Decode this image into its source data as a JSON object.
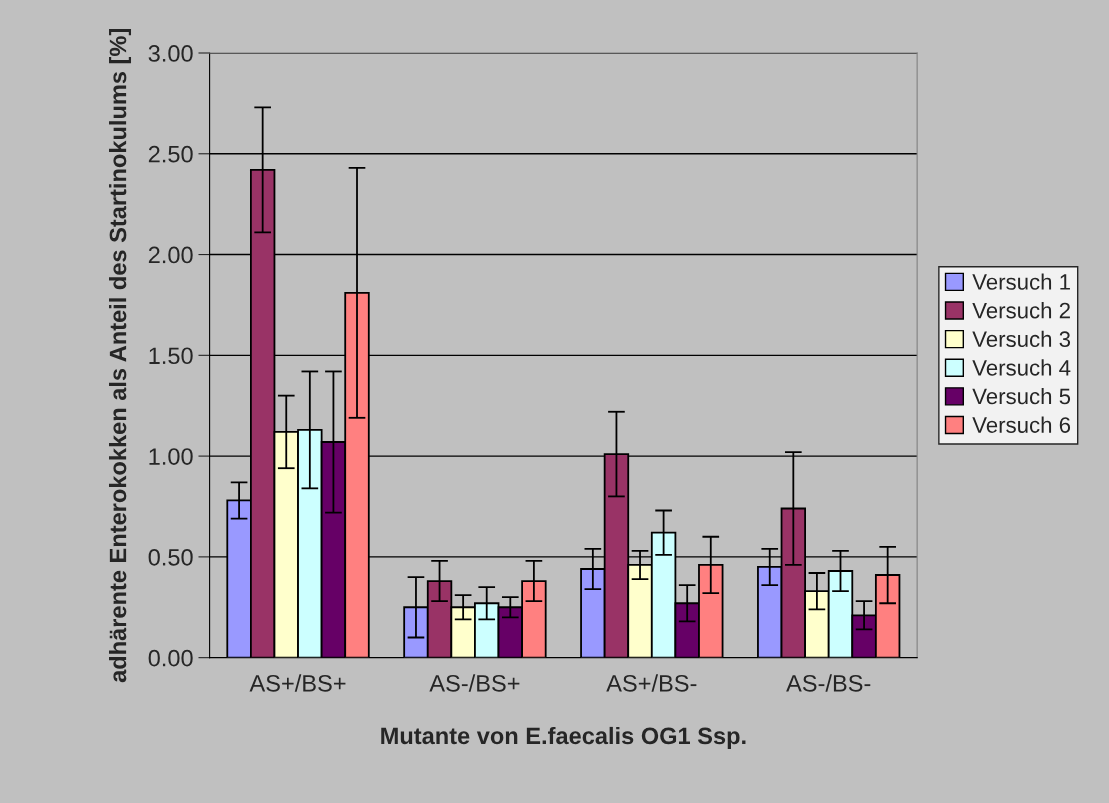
{
  "chart_data": {
    "type": "bar",
    "xlabel": "Mutante von E.faecalis OG1 Ssp.",
    "ylabel": "adhärente Enterokokken als Anteil des Startinokulums [%]",
    "categories": [
      "AS+/BS+",
      "AS-/BS+",
      "AS+/BS-",
      "AS-/BS-"
    ],
    "series": [
      {
        "name": "Versuch 1",
        "color": "#9999ff",
        "values": [
          0.78,
          0.25,
          0.44,
          0.45
        ],
        "errors": [
          0.09,
          0.15,
          0.1,
          0.09
        ]
      },
      {
        "name": "Versuch 2",
        "color": "#993366",
        "values": [
          2.42,
          0.38,
          1.01,
          0.74
        ],
        "errors": [
          0.31,
          0.1,
          0.21,
          0.28
        ]
      },
      {
        "name": "Versuch 3",
        "color": "#ffffcc",
        "values": [
          1.12,
          0.25,
          0.46,
          0.33
        ],
        "errors": [
          0.18,
          0.06,
          0.07,
          0.09
        ]
      },
      {
        "name": "Versuch 4",
        "color": "#ccffff",
        "values": [
          1.13,
          0.27,
          0.62,
          0.43
        ],
        "errors": [
          0.29,
          0.08,
          0.11,
          0.1
        ]
      },
      {
        "name": "Versuch 5",
        "color": "#660066",
        "values": [
          1.07,
          0.25,
          0.27,
          0.21
        ],
        "errors": [
          0.35,
          0.05,
          0.09,
          0.07
        ]
      },
      {
        "name": "Versuch 6",
        "color": "#ff8080",
        "values": [
          1.81,
          0.38,
          0.46,
          0.41
        ],
        "errors": [
          0.62,
          0.1,
          0.14,
          0.14
        ]
      }
    ],
    "ylim": [
      0,
      3
    ],
    "yticks": [
      {
        "value": 0,
        "label": "0.00"
      },
      {
        "value": 0.5,
        "label": "0.50"
      },
      {
        "value": 1,
        "label": "1.00"
      },
      {
        "value": 1.5,
        "label": "1.50"
      },
      {
        "value": 2,
        "label": "2.00"
      },
      {
        "value": 2.5,
        "label": "2.50"
      },
      {
        "value": 3,
        "label": "3.00"
      }
    ],
    "grid": "y",
    "legend": "right"
  }
}
